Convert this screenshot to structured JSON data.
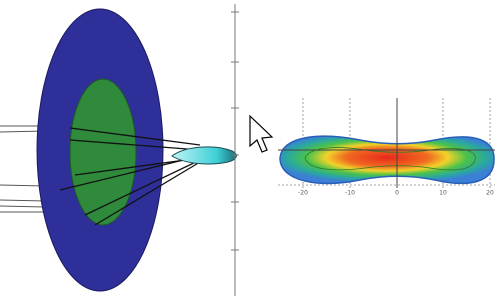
{
  "plot": {
    "x_tick_labels": [
      "-20",
      "-10",
      "0",
      "10",
      "20"
    ]
  }
}
